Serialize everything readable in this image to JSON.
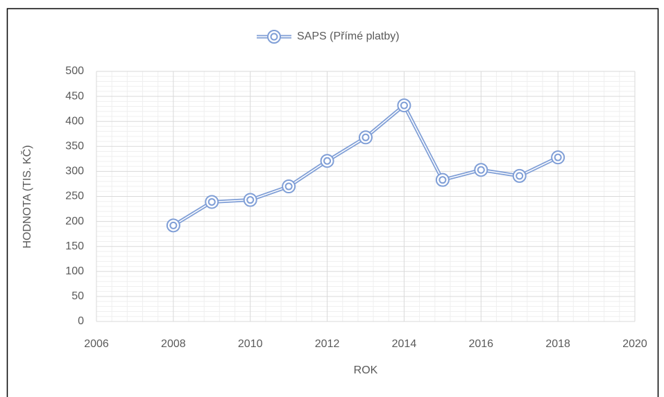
{
  "chart_data": {
    "type": "line",
    "xlabel": "ROK",
    "ylabel": "HODNOTA (TIS. KČ)",
    "x": [
      2008,
      2009,
      2010,
      2011,
      2012,
      2013,
      2014,
      2015,
      2016,
      2017,
      2018
    ],
    "series": [
      {
        "name": "SAPS (Přímé platby)",
        "color": "#7f9ed6",
        "values": [
          192,
          239,
          243,
          270,
          321,
          368,
          432,
          283,
          303,
          291,
          328
        ]
      }
    ],
    "xlim": [
      2006,
      2020
    ],
    "xticks": [
      2006,
      2008,
      2010,
      2012,
      2014,
      2016,
      2018,
      2020
    ],
    "ylim": [
      0,
      500
    ],
    "yticks": [
      0,
      50,
      100,
      150,
      200,
      250,
      300,
      350,
      400,
      450,
      500
    ],
    "grid": true,
    "minor_grid": true,
    "legend": "top"
  }
}
